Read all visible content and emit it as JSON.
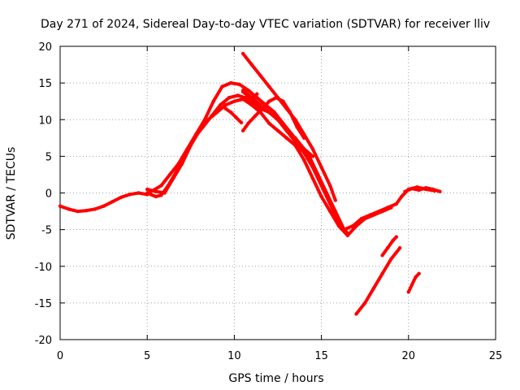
{
  "chart_data": {
    "type": "scatter",
    "title": "Day 271 of 2024, Sidereal Day-to-day VTEC variation (SDTVAR) for receiver lliv",
    "xlabel": "GPS time / hours",
    "ylabel": "SDTVAR / TECUs",
    "xlim": [
      0,
      25
    ],
    "ylim": [
      -20,
      20
    ],
    "xticks": [
      0,
      5,
      10,
      15,
      20,
      25
    ],
    "yticks": [
      -20,
      -15,
      -10,
      -5,
      0,
      5,
      10,
      15,
      20
    ],
    "grid": true,
    "legend": "none",
    "series_color": "#ff0000",
    "series": [
      {
        "points": [
          [
            0,
            -1.8
          ],
          [
            0.5,
            -2.2
          ],
          [
            1,
            -2.5
          ],
          [
            1.5,
            -2.4
          ],
          [
            2,
            -2.2
          ],
          [
            2.5,
            -1.8
          ],
          [
            3,
            -1.2
          ],
          [
            3.5,
            -0.6
          ],
          [
            4,
            -0.2
          ],
          [
            4.5,
            0.0
          ],
          [
            5,
            -0.2
          ],
          [
            5.3,
            0.3
          ],
          [
            5.8,
            1.0
          ],
          [
            6.3,
            2.5
          ],
          [
            6.8,
            4.0
          ],
          [
            7.3,
            6.0
          ],
          [
            7.8,
            8.0
          ],
          [
            8.3,
            10.0
          ],
          [
            8.8,
            12.5
          ],
          [
            9.3,
            14.5
          ],
          [
            9.8,
            15.0
          ],
          [
            10.3,
            14.8
          ],
          [
            10.8,
            14.0
          ],
          [
            11.3,
            13.0
          ],
          [
            11.8,
            12.0
          ],
          [
            12.3,
            11.0
          ],
          [
            12.8,
            9.5
          ],
          [
            13.3,
            8.0
          ],
          [
            13.8,
            6.5
          ],
          [
            14.3,
            5.0
          ],
          [
            14.8,
            2.5
          ],
          [
            15.3,
            0.0
          ],
          [
            15.8,
            -2.5
          ],
          [
            16.3,
            -5.0
          ],
          [
            16.8,
            -4.5
          ],
          [
            17.3,
            -3.5
          ],
          [
            17.8,
            -3.0
          ],
          [
            18.3,
            -2.5
          ],
          [
            18.8,
            -2.0
          ],
          [
            19.3,
            -1.5
          ],
          [
            19.6,
            -0.5
          ],
          [
            20.0,
            0.5
          ],
          [
            20.5,
            0.8
          ],
          [
            21.0,
            0.5
          ],
          [
            21.5,
            0.3
          ]
        ]
      },
      {
        "points": [
          [
            5,
            0.0
          ],
          [
            5.5,
            -0.5
          ],
          [
            5.8,
            -0.3
          ],
          [
            6.2,
            1.0
          ],
          [
            6.7,
            3.0
          ],
          [
            7.2,
            5.5
          ],
          [
            7.7,
            7.5
          ],
          [
            8.2,
            9.0
          ],
          [
            8.7,
            10.5
          ],
          [
            9.2,
            12.0
          ],
          [
            9.7,
            13.0
          ],
          [
            10.2,
            13.3
          ],
          [
            10.6,
            13.0
          ],
          [
            11.0,
            12.5
          ],
          [
            11.5,
            11.5
          ],
          [
            12.0,
            11.0
          ],
          [
            12.5,
            10.0
          ],
          [
            13.0,
            8.5
          ],
          [
            13.5,
            7.0
          ],
          [
            14.0,
            5.5
          ],
          [
            14.5,
            3.5
          ],
          [
            15.0,
            1.0
          ],
          [
            15.5,
            -1.5
          ],
          [
            16.0,
            -4.0
          ],
          [
            16.5,
            -5.5
          ]
        ]
      },
      {
        "points": [
          [
            5,
            0.5
          ],
          [
            5.5,
            0.2
          ],
          [
            6.0,
            0.0
          ],
          [
            6.5,
            2.0
          ],
          [
            7.0,
            4.0
          ],
          [
            7.5,
            6.5
          ],
          [
            8.0,
            8.5
          ],
          [
            8.5,
            10.0
          ],
          [
            9.0,
            11.0
          ],
          [
            9.5,
            12.0
          ],
          [
            10.0,
            12.5
          ],
          [
            10.5,
            12.8
          ],
          [
            11.0,
            12.0
          ],
          [
            11.5,
            11.0
          ],
          [
            12.0,
            9.5
          ],
          [
            12.5,
            8.5
          ],
          [
            13.0,
            7.5
          ],
          [
            13.5,
            6.5
          ],
          [
            14.0,
            4.5
          ],
          [
            14.5,
            2.0
          ],
          [
            15.0,
            -0.5
          ],
          [
            15.5,
            -2.5
          ],
          [
            16.0,
            -4.5
          ],
          [
            16.5,
            -5.8
          ],
          [
            17.0,
            -4.5
          ],
          [
            17.5,
            -3.5
          ],
          [
            18.0,
            -3.0
          ],
          [
            18.5,
            -2.5
          ],
          [
            19.0,
            -2.0
          ]
        ]
      },
      {
        "points": [
          [
            10.5,
            8.5
          ],
          [
            10.8,
            9.5
          ],
          [
            11.2,
            10.5
          ],
          [
            11.6,
            11.5
          ],
          [
            12.0,
            12.5
          ],
          [
            12.4,
            13.0
          ],
          [
            12.8,
            12.5
          ],
          [
            13.2,
            11.0
          ],
          [
            13.6,
            9.0
          ],
          [
            14.0,
            7.5
          ]
        ]
      },
      {
        "points": [
          [
            10.5,
            14.0
          ],
          [
            11.0,
            13.0
          ],
          [
            11.5,
            12.0
          ],
          [
            12.0,
            11.0
          ],
          [
            12.5,
            10.0
          ],
          [
            13.0,
            8.5
          ],
          [
            13.5,
            7.5
          ],
          [
            14.0,
            6.0
          ],
          [
            14.5,
            5.0
          ]
        ]
      },
      {
        "points": [
          [
            9.5,
            11.5
          ],
          [
            9.8,
            11.0
          ],
          [
            10.1,
            10.3
          ],
          [
            10.4,
            9.6
          ]
        ]
      },
      {
        "points": [
          [
            10.5,
            13.8
          ],
          [
            10.8,
            13.2
          ],
          [
            11.1,
            13.0
          ],
          [
            11.3,
            13.5
          ]
        ]
      },
      {
        "points": [
          [
            10.5,
            19.0
          ],
          [
            11.0,
            17.5
          ],
          [
            11.5,
            16.0
          ],
          [
            12.0,
            14.5
          ],
          [
            12.5,
            13.0
          ],
          [
            13.0,
            11.5
          ],
          [
            13.5,
            10.0
          ],
          [
            14.0,
            8.0
          ],
          [
            14.5,
            6.0
          ],
          [
            15.0,
            3.5
          ],
          [
            15.5,
            1.0
          ],
          [
            15.8,
            -1.0
          ]
        ]
      },
      {
        "points": [
          [
            17.0,
            -16.5
          ],
          [
            17.5,
            -15.0
          ],
          [
            18.0,
            -13.0
          ],
          [
            18.5,
            -11.0
          ],
          [
            19.0,
            -9.0
          ],
          [
            19.5,
            -7.5
          ]
        ]
      },
      {
        "points": [
          [
            18.5,
            -8.5
          ],
          [
            18.8,
            -7.5
          ],
          [
            19.1,
            -6.5
          ],
          [
            19.3,
            -6.0
          ]
        ]
      },
      {
        "points": [
          [
            20.0,
            -13.5
          ],
          [
            20.2,
            -12.5
          ],
          [
            20.4,
            -11.5
          ],
          [
            20.6,
            -11.0
          ]
        ]
      },
      {
        "points": [
          [
            19.8,
            0.2
          ],
          [
            20.2,
            0.6
          ],
          [
            20.6,
            0.4
          ],
          [
            21.0,
            0.7
          ],
          [
            21.4,
            0.5
          ],
          [
            21.8,
            0.2
          ]
        ]
      }
    ]
  }
}
